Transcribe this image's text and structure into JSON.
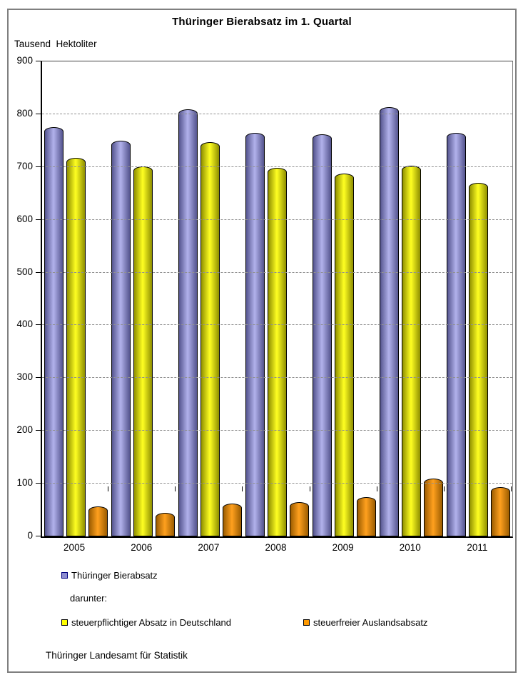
{
  "title": "Thüringer Bierabsatz im 1. Quartal",
  "y_axis_title": "Tausend  Hektoliter",
  "footer": "Thüringer Landesamt für Statistik",
  "legend": {
    "series1_label": "Thüringer Bierabsatz",
    "darunter_label": "darunter:",
    "series2_label": "steuerpflichtiger Absatz in Deutschland",
    "series3_label": "steuerfreier Auslandsabsatz",
    "marker1_fill": "#8c8cd0",
    "marker1_border": "#00007f",
    "marker2_fill": "#ffff00",
    "marker2_border": "#000000",
    "marker3_fill": "#ff9900",
    "marker3_border": "#000000"
  },
  "chart_data": {
    "type": "bar",
    "title": "Thüringer Bierabsatz im 1. Quartal",
    "ylabel": "Tausend Hektoliter",
    "xlabel": "",
    "categories": [
      "2005",
      "2006",
      "2007",
      "2008",
      "2009",
      "2010",
      "2011"
    ],
    "series": [
      {
        "name": "Thüringer Bierabsatz",
        "values": [
          775,
          750,
          810,
          765,
          762,
          813,
          765
        ],
        "color_center": "#b2b2ec",
        "color_edge": "#54548e"
      },
      {
        "name": "steuerpflichtiger Absatz in Deutschland",
        "values": [
          717,
          701,
          747,
          699,
          688,
          703,
          670
        ],
        "color_center": "#ffff22",
        "color_edge": "#8f8f00"
      },
      {
        "name": "steuerfreier Auslandsabsatz",
        "values": [
          57,
          45,
          62,
          65,
          74,
          109,
          94
        ],
        "color_center": "#ffa01e",
        "color_edge": "#9b5c00"
      }
    ],
    "ylim": [
      0,
      900
    ],
    "ytick_step": 100,
    "grid": true,
    "gridline_color": "#909090",
    "legend_position": "bottom"
  }
}
